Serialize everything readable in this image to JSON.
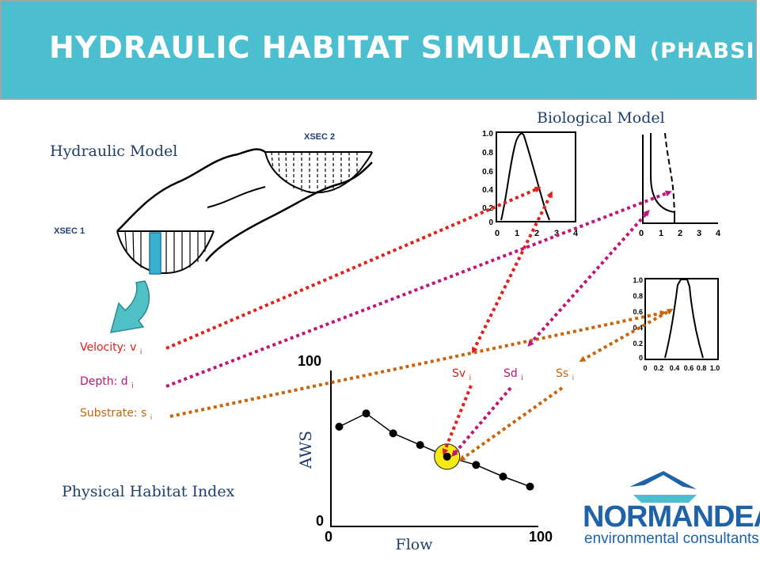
{
  "header": {
    "title": "HYDRAULIC HABITAT SIMULATION",
    "subtitle": "(PHABSIM)"
  },
  "hydraulic": {
    "label": "Hydraulic Model",
    "xsec1": "XSEC 1",
    "xsec2": "XSEC 2"
  },
  "biological": {
    "label": "Biological Model"
  },
  "variables": {
    "velocity": {
      "text": "Velocity: v",
      "sub": "i"
    },
    "depth": {
      "text": "Depth: d",
      "sub": "i"
    },
    "substrate": {
      "text": "Substrate: s",
      "sub": "i"
    }
  },
  "suitability": {
    "sv": {
      "text": "Sv",
      "sub": "i"
    },
    "sd": {
      "text": "Sd",
      "sub": "i"
    },
    "ss": {
      "text": "Ss",
      "sub": "i"
    }
  },
  "phi": {
    "label": "Physical Habitat Index"
  },
  "chart": {
    "ylabel": "AWS",
    "xlabel": "Flow",
    "y_top": "100",
    "y_bottom": "0",
    "x_left": "0",
    "x_right": "100"
  },
  "bio_chart1": {
    "yticks": [
      "1.0",
      "0.8",
      "0.6",
      "0.4",
      "0.2",
      "0"
    ],
    "xticks": [
      "0",
      "1",
      "2",
      "3",
      "4"
    ]
  },
  "bio_chart2": {
    "xticks": [
      "0",
      "1",
      "2",
      "3",
      "4"
    ]
  },
  "bio_chart3": {
    "yticks": [
      "1.0",
      "0.8",
      "0.6",
      "0.4",
      "0.2",
      "0"
    ],
    "xticks": [
      "0",
      "0.2",
      "0.4",
      "0.6",
      "0.8",
      "1.0"
    ]
  },
  "logo": {
    "line1": "NORMANDEAU",
    "line2": "environmental consultants"
  },
  "colors": {
    "header": "#4bbfcf",
    "velocity": "#e0201b",
    "depth": "#c0147a",
    "substrate": "#c8650a",
    "highlight": "#f5ea14",
    "label": "#1e3f6e",
    "logo": "#1e63a8"
  },
  "chart_data": {
    "type": "line",
    "x": [
      4,
      17,
      30,
      43,
      56,
      70,
      83,
      96
    ],
    "y": [
      60,
      68,
      56,
      49,
      42,
      37,
      30,
      24
    ],
    "highlight_x": 56,
    "xlim": [
      0,
      100
    ],
    "ylim": [
      0,
      100
    ],
    "xlabel": "Flow",
    "ylabel": "AWS"
  }
}
